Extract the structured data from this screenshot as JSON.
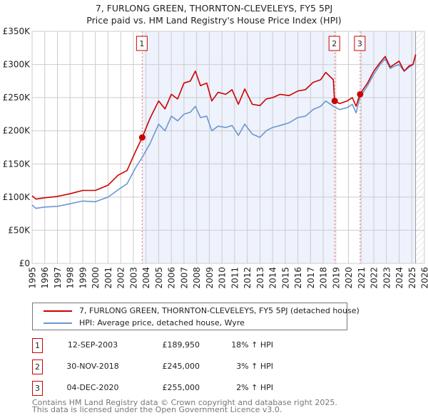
{
  "title": "7, FURLONG GREEN, THORNTON-CLEVELEYS, FY5 5PJ",
  "subtitle": "Price paid vs. HM Land Registry's House Price Index (HPI)",
  "colors": {
    "property": "#cc0000",
    "hpi": "#6a97d0",
    "shade": "#eef2fc"
  },
  "chart_data": {
    "type": "line",
    "title": "7, FURLONG GREEN, THORNTON-CLEVELEYS, FY5 5PJ",
    "xlabel": "",
    "ylabel": "",
    "xlim": [
      1995,
      2026
    ],
    "ylim": [
      0,
      350000
    ],
    "x_ticks": [
      "1995",
      "1996",
      "1997",
      "1998",
      "1999",
      "2000",
      "2001",
      "2002",
      "2003",
      "2004",
      "2005",
      "2006",
      "2007",
      "2008",
      "2009",
      "2010",
      "2011",
      "2012",
      "2013",
      "2014",
      "2015",
      "2016",
      "2017",
      "2018",
      "2019",
      "2020",
      "2021",
      "2022",
      "2023",
      "2024",
      "2025",
      "2026"
    ],
    "y_ticks": [
      "£0",
      "£50K",
      "£100K",
      "£150K",
      "£200K",
      "£250K",
      "£300K",
      "£350K"
    ],
    "grid": true,
    "series": [
      {
        "name": "7, FURLONG GREEN, THORNTON-CLEVELEYS, FY5 5PJ (detached house)",
        "x": [
          1995,
          1995.3,
          1996,
          1997,
          1998,
          1999,
          2000,
          2001,
          2001.8,
          2002.5,
          2003.2,
          2003.7,
          2004.3,
          2005,
          2005.5,
          2006,
          2006.5,
          2007,
          2007.5,
          2007.9,
          2008.3,
          2008.8,
          2009.2,
          2009.7,
          2010.3,
          2010.8,
          2011.3,
          2011.8,
          2012.4,
          2013,
          2013.5,
          2014,
          2014.6,
          2015.3,
          2016,
          2016.6,
          2017.2,
          2017.8,
          2018.2,
          2018.8,
          2018.9,
          2019.3,
          2019.9,
          2020.3,
          2020.6,
          2020.9,
          2021.5,
          2022,
          2022.5,
          2022.9,
          2023.3,
          2023.6,
          2024,
          2024.4,
          2024.8,
          2025.1,
          2025.3
        ],
        "values": [
          102000,
          97000,
          99000,
          101000,
          105000,
          110000,
          110000,
          118000,
          133000,
          140000,
          170000,
          189950,
          218000,
          245000,
          233000,
          255000,
          248000,
          272000,
          275000,
          290000,
          268000,
          272000,
          245000,
          258000,
          255000,
          262000,
          240000,
          263000,
          240000,
          238000,
          248000,
          250000,
          255000,
          253000,
          260000,
          262000,
          273000,
          277000,
          288000,
          277000,
          245000,
          241000,
          245000,
          250000,
          237000,
          255000,
          272000,
          290000,
          303000,
          312000,
          296000,
          300000,
          305000,
          290000,
          298000,
          300000,
          315000
        ]
      },
      {
        "name": "HPI: Average price, detached house, Wyre",
        "x": [
          1995,
          1995.3,
          1996,
          1997,
          1998,
          1999,
          2000,
          2001,
          2001.8,
          2002.5,
          2003.2,
          2003.7,
          2004.3,
          2005,
          2005.5,
          2006,
          2006.5,
          2007,
          2007.5,
          2007.9,
          2008.3,
          2008.8,
          2009.2,
          2009.7,
          2010.3,
          2010.8,
          2011.3,
          2011.8,
          2012.4,
          2013,
          2013.5,
          2014,
          2014.6,
          2015.3,
          2016,
          2016.6,
          2017.2,
          2017.8,
          2018.2,
          2018.8,
          2018.9,
          2019.3,
          2019.9,
          2020.3,
          2020.6,
          2020.9,
          2021.5,
          2022,
          2022.5,
          2022.9,
          2023.3,
          2023.6,
          2024,
          2024.4,
          2024.8,
          2025.1,
          2025.3
        ],
        "values": [
          88000,
          83000,
          85000,
          86000,
          90000,
          94000,
          93000,
          100000,
          111000,
          120000,
          145000,
          160000,
          180000,
          210000,
          200000,
          222000,
          215000,
          225000,
          228000,
          237000,
          220000,
          222000,
          200000,
          207000,
          205000,
          208000,
          193000,
          210000,
          195000,
          190000,
          200000,
          205000,
          208000,
          212000,
          220000,
          222000,
          232000,
          237000,
          245000,
          237000,
          236000,
          232000,
          235000,
          240000,
          227000,
          250000,
          268000,
          285000,
          300000,
          308000,
          294000,
          297000,
          300000,
          290000,
          296000,
          300000,
          313000
        ]
      }
    ],
    "sales": [
      {
        "label": "1",
        "x": 2003.7,
        "value": 189950
      },
      {
        "label": "2",
        "x": 2018.91,
        "value": 245000
      },
      {
        "label": "3",
        "x": 2020.92,
        "value": 255000
      }
    ],
    "shaded_ranges": [
      [
        2003.7,
        2018.91
      ],
      [
        2020.92,
        2025.3
      ]
    ],
    "hatched_range": [
      2025.3,
      2026
    ]
  },
  "legend": {
    "property_label": "7, FURLONG GREEN, THORNTON-CLEVELEYS, FY5 5PJ (detached house)",
    "hpi_label": "HPI: Average price, detached house, Wyre"
  },
  "transactions": [
    {
      "num": "1",
      "date": "12-SEP-2003",
      "price": "£189,950",
      "hpi": "18% ↑ HPI"
    },
    {
      "num": "2",
      "date": "30-NOV-2018",
      "price": "£245,000",
      "hpi": "3% ↑ HPI"
    },
    {
      "num": "3",
      "date": "04-DEC-2020",
      "price": "£255,000",
      "hpi": "2% ↑ HPI"
    }
  ],
  "footer": {
    "line1": "Contains HM Land Registry data © Crown copyright and database right 2025.",
    "line2": "This data is licensed under the Open Government Licence v3.0."
  }
}
